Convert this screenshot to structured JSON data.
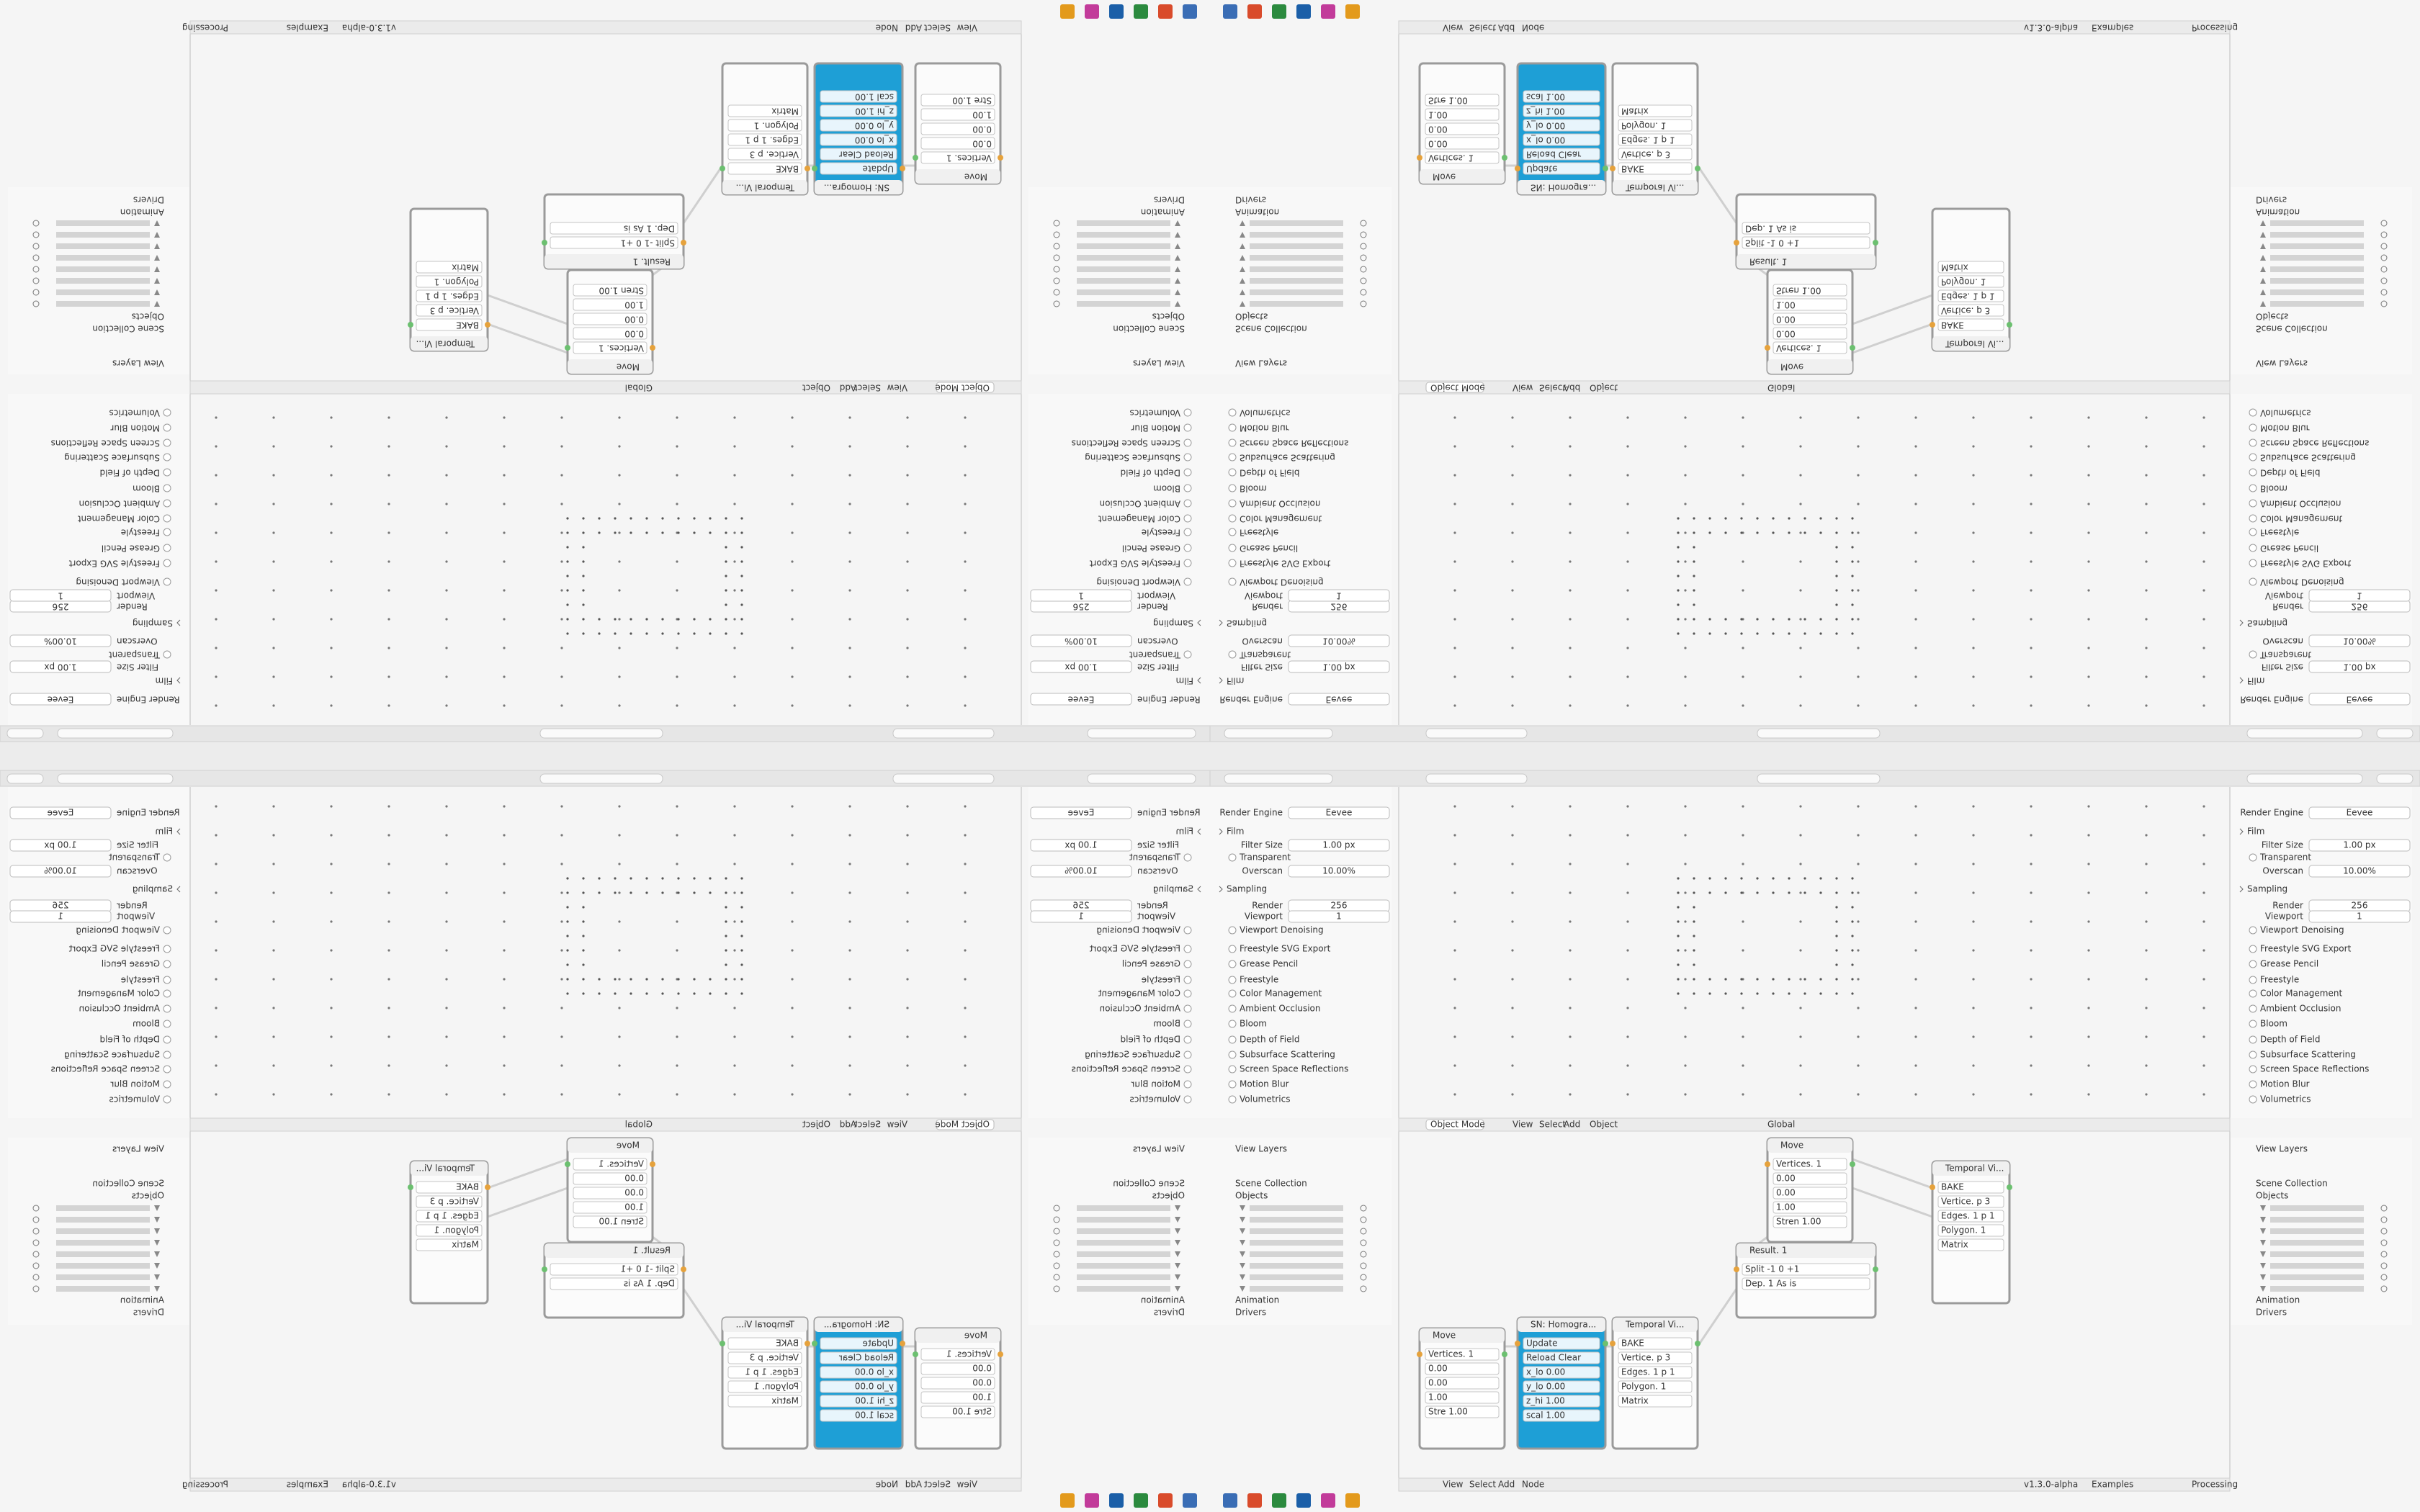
{
  "properties": {
    "rows": [
      {
        "label": "Render Engine",
        "value": "Eevee"
      },
      {
        "label": "Film"
      },
      {
        "label": "Filter Size",
        "value": "1.00 px"
      },
      {
        "label": "Transparent"
      },
      {
        "label": "Overscan",
        "value": "10.00%"
      },
      {
        "label": "Sampling"
      },
      {
        "label": "Render",
        "value": "256"
      },
      {
        "label": "Viewport",
        "value": "1"
      },
      {
        "label": "Viewport Denoising"
      },
      {
        "label": "Freestyle SVG Export"
      },
      {
        "label": "Grease Pencil"
      },
      {
        "label": "Freestyle"
      },
      {
        "label": "Color Management"
      },
      {
        "label": "Ambient Occlusion"
      },
      {
        "label": "Bloom"
      },
      {
        "label": "Depth of Field"
      },
      {
        "label": "Subsurface Scattering"
      },
      {
        "label": "Screen Space Reflections"
      },
      {
        "label": "Motion Blur"
      },
      {
        "label": "Volumetrics"
      }
    ]
  },
  "viewport_header": {
    "mode": "Object Mode",
    "menus": [
      "View",
      "Select",
      "Add",
      "Object"
    ],
    "orientation": "Global"
  },
  "outliner": {
    "top": [
      "View Layers",
      "Scene Collection",
      "Objects"
    ],
    "bottom": [
      "Animation",
      "Drivers"
    ]
  },
  "nodes": [
    {
      "title": "Move",
      "rows": [
        "Vertices. 1",
        "0.00",
        "0.00",
        "1.00",
        "Stren 1.00"
      ]
    },
    {
      "title": "Temporal Vi...",
      "rows": [
        "BAKE",
        "Vertice. p 3",
        "Edges. 1 p 1",
        "Polygon. 1",
        "Matrix"
      ]
    },
    {
      "title": "Result. 1",
      "rows": [
        "Split  -1  0  +1",
        "Dep. 1  As is"
      ]
    },
    {
      "title": "Move",
      "rows": [
        "Vertices. 1",
        "0.00",
        "0.00",
        "1.00",
        "Stre 1.00"
      ]
    },
    {
      "title": "SN: Homogra...",
      "rows": [
        "Update",
        "Reload   Clear",
        "x_lo 0.00",
        "y_lo 0.00",
        "z_hi 1.00",
        "scal 1.00"
      ]
    },
    {
      "title": "Temporal Vi...",
      "rows": [
        "BAKE",
        "Vertice. p 3",
        "Edges. 1 p 1",
        "Polygon. 1",
        "Matrix"
      ]
    }
  ],
  "node_editor_header": {
    "menus": [
      "View",
      "Select",
      "Add",
      "Node"
    ],
    "version": "v1.3.0-alpha",
    "examples": "Examples",
    "processing": "Processing"
  }
}
